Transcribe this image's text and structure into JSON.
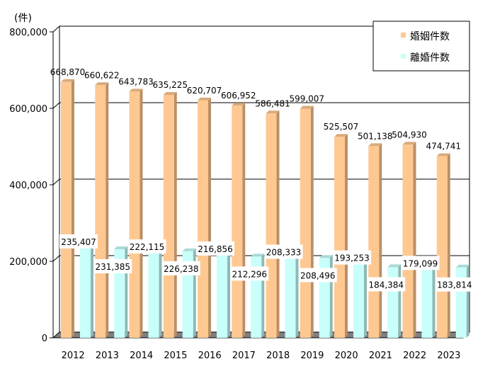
{
  "chart_data": {
    "type": "bar",
    "unit_label": "(件)",
    "categories": [
      "2012",
      "2013",
      "2014",
      "2015",
      "2016",
      "2017",
      "2018",
      "2019",
      "2020",
      "2021",
      "2022",
      "2023"
    ],
    "series": [
      {
        "name": "婚姻件数",
        "color": "#FFC891",
        "values": [
          668870,
          660622,
          643783,
          635225,
          620707,
          606952,
          586481,
          599007,
          525507,
          501138,
          504930,
          474741
        ],
        "labels": [
          "668,870",
          "660,622",
          "643,783",
          "635,225",
          "620,707",
          "606,952",
          "586,481",
          "599,007",
          "525,507",
          "501,138",
          "504,930",
          "474,741"
        ]
      },
      {
        "name": "離婚件数",
        "color": "#C8FFFA",
        "values": [
          235407,
          231385,
          222115,
          226238,
          216856,
          212296,
          208333,
          208496,
          193253,
          184384,
          179099,
          183814
        ],
        "labels": [
          "235,407",
          "231,385",
          "222,115",
          "226,238",
          "216,856",
          "212,296",
          "208,333",
          "208,496",
          "193,253",
          "184,384",
          "179,099",
          "183,814"
        ]
      }
    ],
    "y_ticks": [
      0,
      200000,
      400000,
      600000,
      800000
    ],
    "y_tick_labels": [
      "0",
      "200,000",
      "400,000",
      "600,000",
      "800,000"
    ],
    "ylim": [
      0,
      800000
    ],
    "legend_position": "top-right",
    "grid": true
  }
}
